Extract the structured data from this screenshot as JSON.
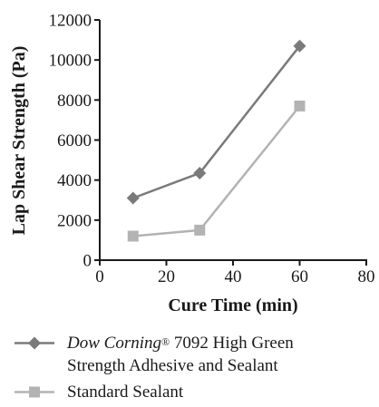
{
  "chart_data": {
    "type": "line",
    "xlabel": "Cure Time (min)",
    "ylabel": "Lap Shear Strength (Pa)",
    "xlim": [
      0,
      80
    ],
    "ylim": [
      0,
      12000
    ],
    "x_ticks": [
      "0",
      "20",
      "40",
      "60",
      "80"
    ],
    "y_ticks": [
      "0",
      "2000",
      "4000",
      "6000",
      "8000",
      "10000",
      "12000"
    ],
    "grid": false,
    "legend_position": "bottom",
    "series": [
      {
        "name_parts": {
          "brand": "Dow Corning",
          "mark": "®",
          "rest_line1": " 7092 High Green",
          "rest_line2": "Strength Adhesive and Sealant"
        },
        "marker": "diamond",
        "color": "#7a7a7a",
        "x": [
          10,
          30,
          60
        ],
        "y": [
          3100,
          4350,
          10700
        ]
      },
      {
        "name": "Standard Sealant",
        "marker": "square",
        "color": "#b3b3b3",
        "x": [
          10,
          30,
          60
        ],
        "y": [
          1200,
          1500,
          7700
        ]
      }
    ]
  }
}
